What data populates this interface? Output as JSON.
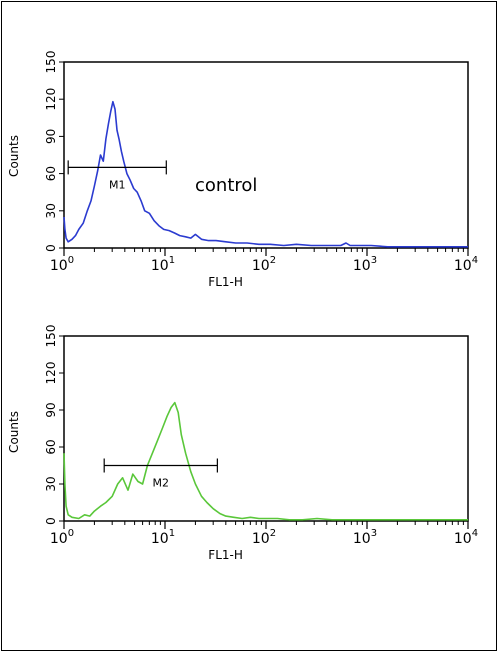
{
  "chart_data": [
    {
      "type": "line",
      "panel": "top",
      "color": "#2b3bd0",
      "xlabel": "FL1-H",
      "ylabel": "Counts",
      "x_scale": "log",
      "xlim": [
        1,
        10000
      ],
      "ylim": [
        0,
        150
      ],
      "y_ticks": [
        "0",
        "30",
        "60",
        "90",
        "120",
        "150"
      ],
      "x_ticks": [
        {
          "value": 1,
          "base": "10",
          "exp": "0"
        },
        {
          "value": 10,
          "base": "10",
          "exp": "1"
        },
        {
          "value": 100,
          "base": "10",
          "exp": "2"
        },
        {
          "value": 1000,
          "base": "10",
          "exp": "3"
        },
        {
          "value": 10000,
          "base": "10",
          "exp": "4"
        }
      ],
      "annotation": "control",
      "marker": {
        "label": "M1",
        "x_start": 1.1,
        "x_end": 10.3,
        "y": 65
      },
      "series": [
        {
          "x": [
            1.0,
            1.02,
            1.05,
            1.1,
            1.2,
            1.3,
            1.4,
            1.55,
            1.7,
            1.85,
            2.0,
            2.15,
            2.3,
            2.45,
            2.6,
            2.75,
            2.9,
            3.05,
            3.2,
            3.35,
            3.5,
            3.7,
            3.9,
            4.2,
            4.5,
            4.9,
            5.3,
            5.8,
            6.3,
            7.0,
            7.8,
            8.7,
            9.7,
            11,
            12.5,
            14,
            16,
            18,
            20,
            23,
            27,
            32,
            40,
            50,
            65,
            85,
            110,
            150,
            200,
            280,
            400,
            550,
            620,
            680,
            800,
            1100,
            1600,
            2500,
            4000,
            6000,
            8000,
            10000
          ],
          "y": [
            25,
            15,
            8,
            5,
            7,
            10,
            15,
            20,
            30,
            38,
            50,
            62,
            75,
            70,
            88,
            100,
            110,
            118,
            112,
            95,
            88,
            78,
            70,
            60,
            55,
            48,
            45,
            38,
            30,
            28,
            22,
            18,
            15,
            14,
            12,
            10,
            9,
            8,
            11,
            7,
            6,
            6,
            5,
            4,
            4,
            3,
            3,
            2,
            3,
            2,
            2,
            2,
            4,
            2,
            2,
            2,
            1,
            1,
            1,
            1,
            1,
            1
          ]
        }
      ]
    },
    {
      "type": "line",
      "panel": "bottom",
      "color": "#5ac73a",
      "xlabel": "FL1-H",
      "ylabel": "Counts",
      "x_scale": "log",
      "xlim": [
        1,
        10000
      ],
      "ylim": [
        0,
        150
      ],
      "y_ticks": [
        "0",
        "30",
        "60",
        "90",
        "120",
        "150"
      ],
      "x_ticks": [
        {
          "value": 1,
          "base": "10",
          "exp": "0"
        },
        {
          "value": 10,
          "base": "10",
          "exp": "1"
        },
        {
          "value": 100,
          "base": "10",
          "exp": "2"
        },
        {
          "value": 1000,
          "base": "10",
          "exp": "3"
        },
        {
          "value": 10000,
          "base": "10",
          "exp": "4"
        }
      ],
      "marker": {
        "label": "M2",
        "x_start": 2.5,
        "x_end": 33,
        "y": 45
      },
      "series": [
        {
          "x": [
            1.0,
            1.02,
            1.05,
            1.1,
            1.2,
            1.4,
            1.6,
            1.8,
            2.0,
            2.3,
            2.6,
            3.0,
            3.4,
            3.8,
            4.3,
            4.8,
            5.4,
            6.0,
            6.7,
            7.5,
            8.4,
            9.4,
            10.5,
            11.5,
            12.5,
            13.5,
            14.5,
            16,
            18,
            20,
            23,
            26,
            30,
            35,
            40,
            48,
            58,
            70,
            85,
            100,
            130,
            170,
            230,
            320,
            450,
            650,
            950,
            1400,
            2000,
            3000,
            4500,
            6500,
            10000
          ],
          "y": [
            55,
            30,
            12,
            5,
            3,
            2,
            5,
            4,
            8,
            12,
            15,
            20,
            30,
            35,
            25,
            38,
            32,
            30,
            45,
            55,
            65,
            75,
            85,
            92,
            96,
            88,
            70,
            55,
            40,
            30,
            20,
            15,
            10,
            6,
            4,
            3,
            2,
            3,
            2,
            2,
            2,
            1,
            1,
            2,
            1,
            1,
            1,
            1,
            1,
            1,
            1,
            1,
            1
          ]
        }
      ]
    }
  ]
}
